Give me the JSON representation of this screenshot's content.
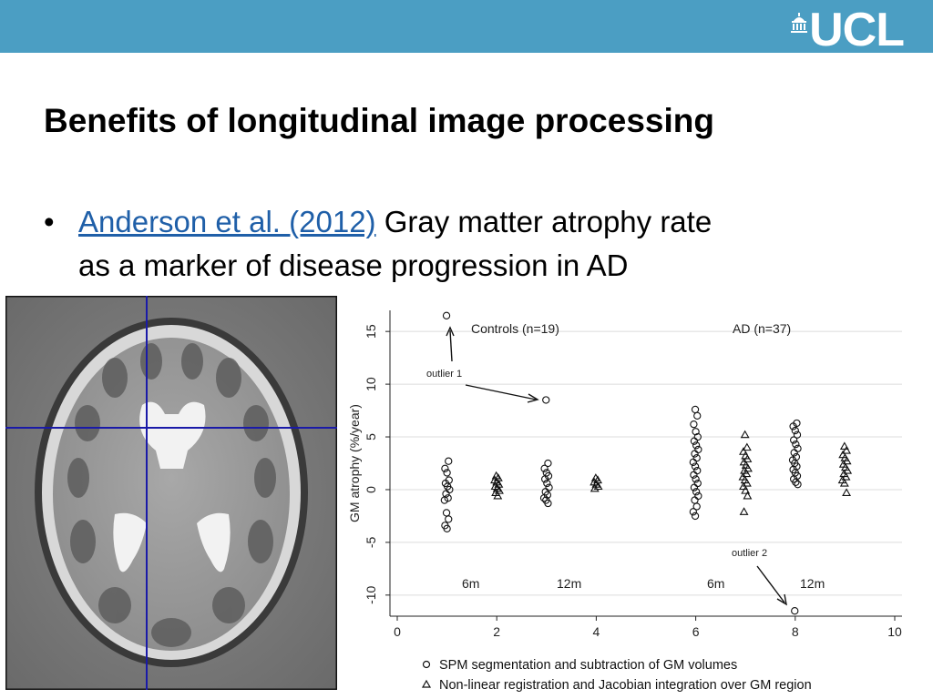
{
  "header": {
    "logo_text": "UCL",
    "logo_icon": "ucl-portico-icon",
    "color": "#4b9ec3"
  },
  "slide": {
    "title": "Benefits of longitudinal image processing",
    "bullet": {
      "symbol": "•",
      "link_text": "Anderson et al. (2012)",
      "text_line1": " Gray matter atrophy rate",
      "text_line2": "as a marker of disease progression in AD"
    },
    "brain_image": "mri-axial-brain-slice-with-crosshair"
  },
  "chart_data": {
    "type": "scatter",
    "title": "",
    "xlabel": "",
    "ylabel": "GM atrophy (%/year)",
    "xlim": [
      0,
      10
    ],
    "ylim": [
      -12,
      17
    ],
    "xticks": [
      0,
      2,
      4,
      6,
      8,
      10
    ],
    "yticks": [
      -10,
      -5,
      0,
      5,
      10,
      15
    ],
    "grid": "horizontal",
    "legend": "bottom",
    "annotations": [
      {
        "text": "Controls (n=19)"
      },
      {
        "text": "AD (n=37)"
      },
      {
        "text": "outlier 1"
      },
      {
        "text": "outlier 2"
      },
      {
        "text": "6m"
      },
      {
        "text": "12m"
      },
      {
        "text": "6m"
      },
      {
        "text": "12m"
      }
    ],
    "series": [
      {
        "name": "SPM segmentation and subtraction of GM volumes",
        "marker": "circle",
        "points": [
          [
            1,
            16.5
          ],
          [
            3,
            8.5
          ],
          [
            8,
            -11.5
          ],
          [
            1,
            2.7
          ],
          [
            1,
            2.0
          ],
          [
            1,
            1.6
          ],
          [
            1,
            0.9
          ],
          [
            1,
            0.6
          ],
          [
            1,
            0.3
          ],
          [
            1,
            0.0
          ],
          [
            1,
            -0.4
          ],
          [
            1,
            -0.8
          ],
          [
            1,
            -1.0
          ],
          [
            1,
            -2.2
          ],
          [
            1,
            -2.8
          ],
          [
            1,
            -3.4
          ],
          [
            1,
            -3.7
          ],
          [
            3,
            2.5
          ],
          [
            3,
            2.0
          ],
          [
            3,
            1.6
          ],
          [
            3,
            1.3
          ],
          [
            3,
            1.0
          ],
          [
            3,
            0.6
          ],
          [
            3,
            0.2
          ],
          [
            3,
            -0.2
          ],
          [
            3,
            -0.5
          ],
          [
            3,
            -0.8
          ],
          [
            3,
            -1.0
          ],
          [
            3,
            -1.3
          ],
          [
            6,
            7.6
          ],
          [
            6,
            7.0
          ],
          [
            6,
            6.2
          ],
          [
            6,
            5.5
          ],
          [
            6,
            5.0
          ],
          [
            6,
            4.6
          ],
          [
            6,
            4.2
          ],
          [
            6,
            3.8
          ],
          [
            6,
            3.4
          ],
          [
            6,
            3.0
          ],
          [
            6,
            2.6
          ],
          [
            6,
            2.2
          ],
          [
            6,
            1.8
          ],
          [
            6,
            1.4
          ],
          [
            6,
            1.0
          ],
          [
            6,
            0.6
          ],
          [
            6,
            0.2
          ],
          [
            6,
            -0.2
          ],
          [
            6,
            -0.6
          ],
          [
            6,
            -1.0
          ],
          [
            6,
            -1.6
          ],
          [
            6,
            -2.1
          ],
          [
            6,
            -2.5
          ],
          [
            8,
            6.3
          ],
          [
            8,
            6.0
          ],
          [
            8,
            5.6
          ],
          [
            8,
            5.2
          ],
          [
            8,
            4.7
          ],
          [
            8,
            4.3
          ],
          [
            8,
            3.9
          ],
          [
            8,
            3.5
          ],
          [
            8,
            3.1
          ],
          [
            8,
            2.8
          ],
          [
            8,
            2.5
          ],
          [
            8,
            2.2
          ],
          [
            8,
            1.9
          ],
          [
            8,
            1.6
          ],
          [
            8,
            1.3
          ],
          [
            8,
            1.0
          ],
          [
            8,
            0.7
          ],
          [
            8,
            0.5
          ]
        ]
      },
      {
        "name": "Non-linear registration and Jacobian integration over GM region",
        "marker": "triangle",
        "points": [
          [
            2,
            1.3
          ],
          [
            2,
            1.1
          ],
          [
            2,
            0.9
          ],
          [
            2,
            0.7
          ],
          [
            2,
            0.5
          ],
          [
            2,
            0.3
          ],
          [
            2,
            0.1
          ],
          [
            2,
            -0.1
          ],
          [
            2,
            -0.3
          ],
          [
            2,
            -0.6
          ],
          [
            4,
            1.1
          ],
          [
            4,
            0.9
          ],
          [
            4,
            0.7
          ],
          [
            4,
            0.5
          ],
          [
            4,
            0.3
          ],
          [
            4,
            0.1
          ],
          [
            7,
            5.2
          ],
          [
            7,
            4.0
          ],
          [
            7,
            3.6
          ],
          [
            7,
            3.2
          ],
          [
            7,
            2.9
          ],
          [
            7,
            2.6
          ],
          [
            7,
            2.3
          ],
          [
            7,
            2.0
          ],
          [
            7,
            1.8
          ],
          [
            7,
            1.5
          ],
          [
            7,
            1.2
          ],
          [
            7,
            0.9
          ],
          [
            7,
            0.6
          ],
          [
            7,
            0.3
          ],
          [
            7,
            -0.1
          ],
          [
            7,
            -0.6
          ],
          [
            7,
            -2.1
          ],
          [
            9,
            4.1
          ],
          [
            9,
            3.7
          ],
          [
            9,
            3.3
          ],
          [
            9,
            3.0
          ],
          [
            9,
            2.7
          ],
          [
            9,
            2.4
          ],
          [
            9,
            2.1
          ],
          [
            9,
            1.8
          ],
          [
            9,
            1.5
          ],
          [
            9,
            1.2
          ],
          [
            9,
            0.9
          ],
          [
            9,
            0.6
          ],
          [
            9,
            -0.3
          ]
        ]
      }
    ]
  }
}
